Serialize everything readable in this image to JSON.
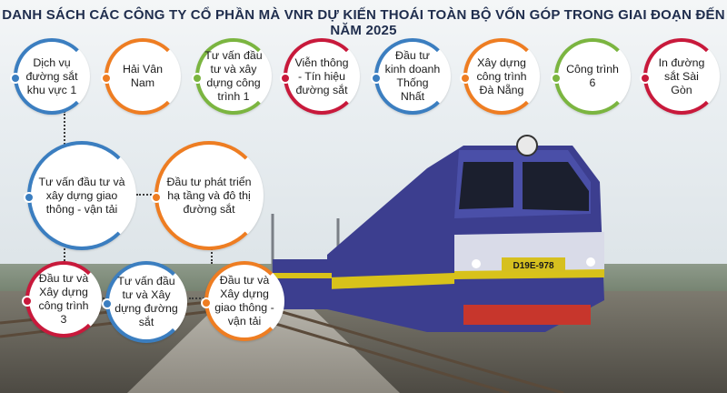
{
  "title": "DANH SÁCH CÁC CÔNG TY CỔ PHẦN MÀ VNR DỰ KIẾN THOÁI TOÀN BỘ VỐN GÓP TRONG GIAI ĐOẠN ĐẾN NĂM 2025",
  "locomotive_number": "D19E-978",
  "colors": {
    "title": "#1f2d4d",
    "blue": "#3b7ec0",
    "orange": "#ee7d22",
    "green": "#7bb540",
    "red": "#c8193b",
    "purple": "#6a3e98",
    "train_body": "#3c3e8f",
    "train_stripe": "#d8c21a"
  },
  "companies": [
    {
      "label": "Dịch vụ đường sắt khu vực 1",
      "color": "blue"
    },
    {
      "label": "Hải Vân Nam",
      "color": "orange"
    },
    {
      "label": "Tư vấn đầu tư và xây dựng công trình 1",
      "color": "green"
    },
    {
      "label": "Viễn thông - Tín hiệu đường sắt",
      "color": "red"
    },
    {
      "label": "Đầu tư kinh doanh Thống Nhất",
      "color": "blue"
    },
    {
      "label": "Xây dựng công trình Đà Nẵng",
      "color": "orange"
    },
    {
      "label": "Công trình 6",
      "color": "green"
    },
    {
      "label": "In đường sắt Sài Gòn",
      "color": "red"
    },
    {
      "label": "Tư vấn đầu tư và xây dựng giao thông - vận tải",
      "color": "blue"
    },
    {
      "label": "Đầu tư phát triển hạ tầng và đô thị đường sắt",
      "color": "orange"
    },
    {
      "label": "Đầu tư và Xây dựng công trình 3",
      "color": "red"
    },
    {
      "label": "Tư vấn đầu tư và Xây dựng đường sắt",
      "color": "blue"
    },
    {
      "label": "Đầu tư và Xây dựng giao thông - vận tải",
      "color": "orange"
    }
  ]
}
